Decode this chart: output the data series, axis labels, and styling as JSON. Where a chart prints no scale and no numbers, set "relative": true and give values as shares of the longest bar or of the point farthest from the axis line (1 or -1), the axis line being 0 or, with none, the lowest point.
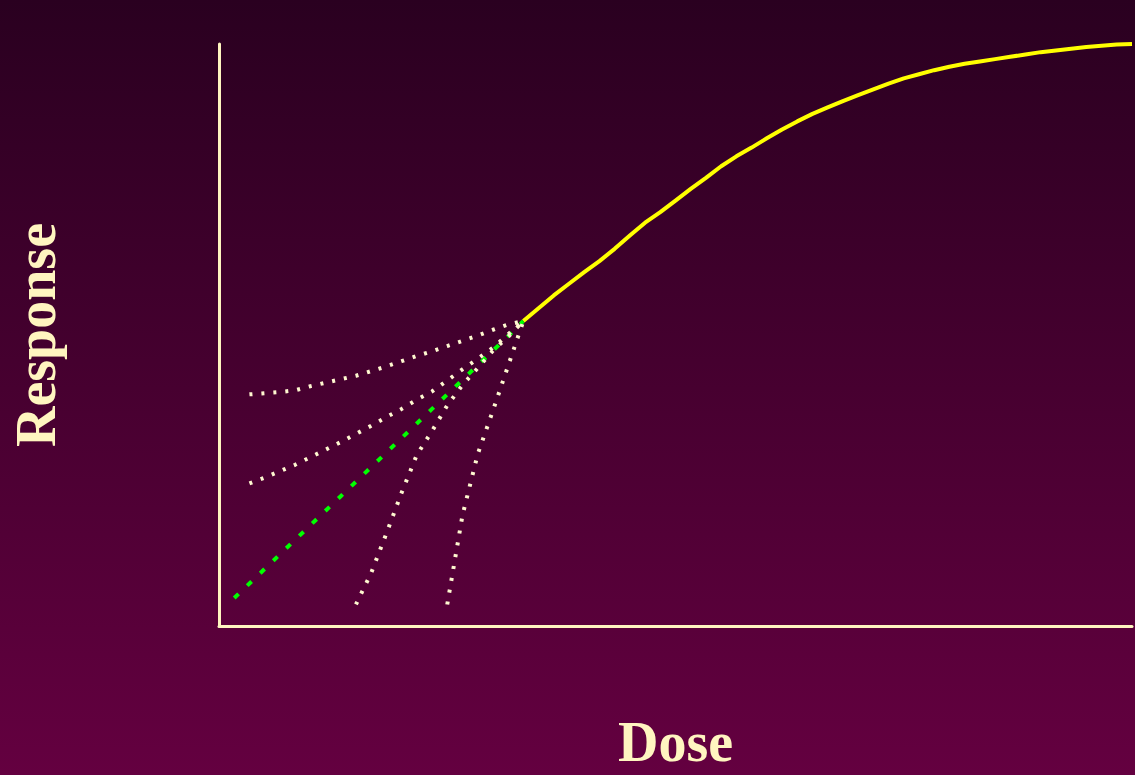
{
  "chart_data": {
    "type": "line",
    "relative": true,
    "xlabel": "Dose",
    "ylabel": "Response",
    "grid": false,
    "marker": "none",
    "categories": [
      null,
      null,
      null,
      null,
      null,
      null,
      null,
      null,
      null,
      null,
      null,
      null,
      null,
      null,
      null,
      null,
      null,
      null,
      null,
      null,
      null,
      null,
      null,
      null,
      null,
      null,
      null,
      null,
      null,
      null,
      null,
      null,
      null,
      null,
      null,
      null,
      null,
      null,
      null,
      null,
      null,
      null,
      null,
      null,
      null,
      null,
      null,
      null,
      null,
      null,
      null,
      null,
      null,
      null,
      null,
      null,
      null,
      null,
      null,
      null,
      null
    ],
    "series": [
      {
        "color": "#ffff00",
        "line_style": "solid",
        "values": [
          null,
          null,
          null,
          null,
          null,
          null,
          null,
          null,
          null,
          null,
          null,
          null,
          null,
          null,
          null,
          null,
          null,
          null,
          null,
          null,
          0.524,
          0.546,
          0.568,
          0.588,
          0.608,
          0.627,
          0.648,
          0.671,
          0.693,
          0.711,
          0.731,
          0.751,
          0.77,
          0.79,
          0.807,
          0.822,
          0.838,
          0.853,
          0.867,
          0.88,
          0.891,
          0.902,
          0.912,
          0.922,
          0.932,
          0.941,
          0.948,
          0.955,
          0.961,
          0.966,
          0.97,
          0.974,
          0.978,
          0.982,
          0.986,
          0.989,
          0.992,
          0.995,
          0.997,
          0.999,
          1.0
        ]
      },
      {
        "color": "#00ff00",
        "line_style": "dashed",
        "values": [
          null,
          0.048,
          0.073,
          0.098,
          0.123,
          0.148,
          0.173,
          0.198,
          0.223,
          0.248,
          0.273,
          0.298,
          0.323,
          0.348,
          0.373,
          0.398,
          0.423,
          0.448,
          0.473,
          0.498,
          0.524,
          null,
          null,
          null,
          null,
          null,
          null,
          null,
          null,
          null,
          null,
          null,
          null,
          null,
          null,
          null,
          null,
          null,
          null,
          null,
          null,
          null,
          null,
          null,
          null,
          null,
          null,
          null,
          null,
          null,
          null,
          null,
          null,
          null,
          null,
          null,
          null,
          null,
          null,
          null,
          null
        ]
      },
      {
        "color": "#fff8d0",
        "line_style": "dotted",
        "values": [
          null,
          null,
          0.398,
          0.4,
          0.402,
          0.405,
          0.412,
          0.418,
          0.424,
          0.43,
          0.438,
          0.446,
          0.455,
          0.464,
          0.472,
          0.481,
          0.49,
          0.499,
          0.509,
          0.518,
          0.524,
          null,
          null,
          null,
          null,
          null,
          null,
          null,
          null,
          null,
          null,
          null,
          null,
          null,
          null,
          null,
          null,
          null,
          null,
          null,
          null,
          null,
          null,
          null,
          null,
          null,
          null,
          null,
          null,
          null,
          null,
          null,
          null,
          null,
          null,
          null,
          null,
          null,
          null,
          null,
          null
        ]
      },
      {
        "color": "#fff8d0",
        "line_style": "dotted",
        "values": [
          null,
          null,
          0.245,
          0.255,
          0.266,
          0.277,
          0.29,
          0.303,
          0.316,
          0.33,
          0.344,
          0.359,
          0.373,
          0.389,
          0.403,
          0.422,
          0.441,
          0.459,
          0.478,
          0.501,
          0.524,
          null,
          null,
          null,
          null,
          null,
          null,
          null,
          null,
          null,
          null,
          null,
          null,
          null,
          null,
          null,
          null,
          null,
          null,
          null,
          null,
          null,
          null,
          null,
          null,
          null,
          null,
          null,
          null,
          null,
          null,
          null,
          null,
          null,
          null,
          null,
          null,
          null,
          null,
          null,
          null
        ]
      },
      {
        "color": "#fff8d0",
        "line_style": "dotted",
        "values": [
          null,
          null,
          null,
          null,
          null,
          null,
          null,
          null,
          null,
          0.037,
          0.091,
          0.159,
          0.229,
          0.294,
          0.335,
          0.379,
          0.414,
          0.443,
          0.473,
          0.497,
          0.524,
          null,
          null,
          null,
          null,
          null,
          null,
          null,
          null,
          null,
          null,
          null,
          null,
          null,
          null,
          null,
          null,
          null,
          null,
          null,
          null,
          null,
          null,
          null,
          null,
          null,
          null,
          null,
          null,
          null,
          null,
          null,
          null,
          null,
          null,
          null,
          null,
          null,
          null,
          null,
          null
        ]
      },
      {
        "color": "#fff8d0",
        "line_style": "dotted",
        "values": [
          null,
          null,
          null,
          null,
          null,
          null,
          null,
          null,
          null,
          null,
          null,
          null,
          null,
          null,
          null,
          0.037,
          0.19,
          0.295,
          0.37,
          0.447,
          0.524,
          null,
          null,
          null,
          null,
          null,
          null,
          null,
          null,
          null,
          null,
          null,
          null,
          null,
          null,
          null,
          null,
          null,
          null,
          null,
          null,
          null,
          null,
          null,
          null,
          null,
          null,
          null,
          null,
          null,
          null,
          null,
          null,
          null,
          null,
          null,
          null,
          null,
          null,
          null,
          null
        ]
      }
    ]
  }
}
